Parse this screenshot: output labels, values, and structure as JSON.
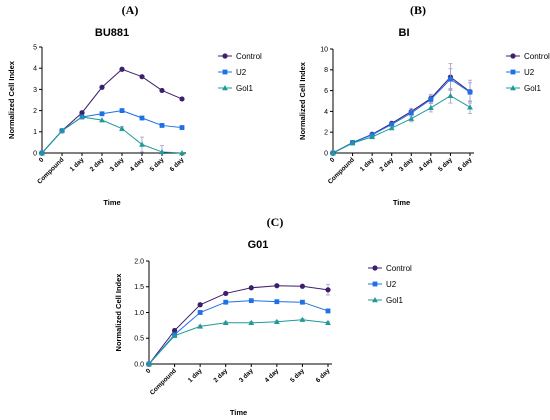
{
  "chart_data": [
    {
      "panel_letter": "(A)",
      "type": "line",
      "title": "BU881",
      "xlabel": "Time",
      "ylabel": "Normalized Cell Index",
      "ylim": [
        0,
        5
      ],
      "yticks": [
        0,
        1,
        2,
        3,
        4,
        5
      ],
      "categories": [
        "0",
        "Compound",
        "1 day",
        "2 day",
        "3 day",
        "4 day",
        "5 day",
        "6 day"
      ],
      "grid": false,
      "legend": "right",
      "series": [
        {
          "name": "Control",
          "color": "#3d1f6b",
          "marker": "circle",
          "values": [
            0,
            1.05,
            1.9,
            3.1,
            3.95,
            3.6,
            2.95,
            2.55
          ],
          "errors": [
            0,
            0,
            0,
            0,
            0,
            0,
            0,
            0
          ]
        },
        {
          "name": "U2",
          "color": "#1f6fe5",
          "marker": "square",
          "values": [
            0,
            1.05,
            1.7,
            1.85,
            2.0,
            1.65,
            1.3,
            1.2
          ],
          "errors": [
            0,
            0,
            0,
            0,
            0,
            0,
            0,
            0
          ]
        },
        {
          "name": "Gol1",
          "color": "#1f9a9a",
          "marker": "triangle",
          "values": [
            0,
            1.05,
            1.7,
            1.55,
            1.15,
            0.4,
            0.05,
            0.0
          ],
          "errors": [
            0,
            0,
            0,
            0,
            0.1,
            0.35,
            0.3,
            0
          ]
        }
      ]
    },
    {
      "panel_letter": "(B)",
      "type": "line",
      "title": "BI",
      "xlabel": "Time",
      "ylabel": "Normalized Cell Index",
      "ylim": [
        0,
        10
      ],
      "yticks": [
        0,
        2,
        4,
        6,
        8,
        10
      ],
      "categories": [
        "0",
        "Compound",
        "1 day",
        "2 day",
        "3 day",
        "4 day",
        "5 day",
        "6 day"
      ],
      "grid": false,
      "legend": "right",
      "series": [
        {
          "name": "Control",
          "color": "#3d1f6b",
          "marker": "circle",
          "values": [
            0,
            1.0,
            1.8,
            2.85,
            4.0,
            5.25,
            7.3,
            5.9
          ],
          "errors": [
            0,
            0,
            0.1,
            0.15,
            0.3,
            0.4,
            1.3,
            1.1
          ]
        },
        {
          "name": "U2",
          "color": "#1f6fe5",
          "marker": "square",
          "values": [
            0,
            1.0,
            1.75,
            2.75,
            3.85,
            5.15,
            7.1,
            5.85
          ],
          "errors": [
            0,
            0,
            0.1,
            0.15,
            0.3,
            0.4,
            1.0,
            0.9
          ]
        },
        {
          "name": "Gol1",
          "color": "#1f9a9a",
          "marker": "triangle",
          "values": [
            0,
            0.95,
            1.55,
            2.4,
            3.3,
            4.35,
            5.5,
            4.4
          ],
          "errors": [
            0,
            0,
            0.1,
            0.15,
            0.3,
            0.4,
            0.7,
            0.6
          ]
        }
      ]
    },
    {
      "panel_letter": "(C)",
      "type": "line",
      "title": "G01",
      "xlabel": "Time",
      "ylabel": "Normalized Cell Index",
      "ylim": [
        0,
        2
      ],
      "yticks": [
        "0.0",
        "0.5",
        "1.0",
        "1.5",
        "2.0"
      ],
      "categories": [
        "0",
        "Compound",
        "1 day",
        "2 day",
        "3 day",
        "4 day",
        "5 day",
        "6 day"
      ],
      "grid": false,
      "legend": "right",
      "series": [
        {
          "name": "Control",
          "color": "#3d1f6b",
          "marker": "circle",
          "values": [
            0,
            0.65,
            1.15,
            1.37,
            1.48,
            1.52,
            1.51,
            1.44
          ],
          "errors": [
            0,
            0,
            0.03,
            0.03,
            0.02,
            0.02,
            0.02,
            0.1
          ]
        },
        {
          "name": "U2",
          "color": "#1f6fe5",
          "marker": "square",
          "values": [
            0,
            0.57,
            1.0,
            1.2,
            1.23,
            1.21,
            1.2,
            1.03
          ],
          "errors": [
            0,
            0,
            0.02,
            0.02,
            0.02,
            0.02,
            0.02,
            0.03
          ]
        },
        {
          "name": "Gol1",
          "color": "#1f9a9a",
          "marker": "triangle",
          "values": [
            0,
            0.55,
            0.73,
            0.8,
            0.8,
            0.82,
            0.86,
            0.8
          ],
          "errors": [
            0,
            0,
            0.02,
            0.02,
            0.02,
            0.02,
            0.02,
            0.02
          ]
        }
      ]
    }
  ]
}
